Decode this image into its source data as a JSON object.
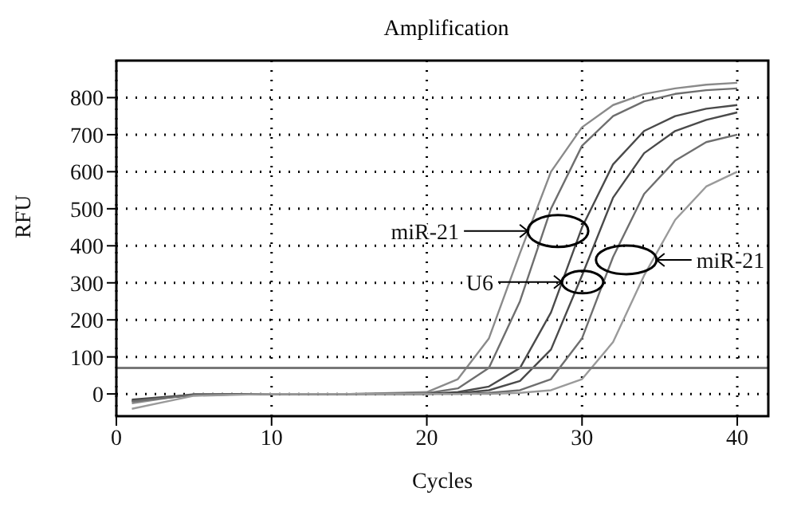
{
  "chart_data": {
    "type": "line",
    "title": "Amplification",
    "xlabel": "Cycles",
    "ylabel": "RFU",
    "xlim": [
      0,
      42
    ],
    "xticks": [
      0,
      10,
      20,
      30,
      40
    ],
    "ylim": [
      -60,
      900
    ],
    "yticks": [
      0,
      100,
      200,
      300,
      400,
      500,
      600,
      700,
      800
    ],
    "grid": true,
    "marker": "none",
    "line_style": "solid",
    "series": [
      {
        "color": "#8a8a8a",
        "x": [
          1,
          5,
          10,
          15,
          20,
          22,
          24,
          26,
          28,
          30,
          32,
          34,
          36,
          38,
          40
        ],
        "values": [
          -25,
          0,
          0,
          0,
          5,
          40,
          150,
          380,
          600,
          720,
          780,
          810,
          825,
          835,
          840
        ]
      },
      {
        "color": "#6e6e6e",
        "x": [
          1,
          5,
          10,
          15,
          20,
          22,
          24,
          26,
          28,
          30,
          32,
          34,
          36,
          38,
          40
        ],
        "values": [
          -20,
          -2,
          0,
          0,
          2,
          15,
          70,
          250,
          500,
          670,
          750,
          790,
          810,
          820,
          825
        ]
      },
      {
        "color": "#4a4a4a",
        "x": [
          1,
          5,
          10,
          15,
          20,
          22,
          24,
          26,
          28,
          30,
          32,
          34,
          36,
          38,
          40
        ],
        "values": [
          -18,
          -3,
          0,
          0,
          0,
          5,
          20,
          70,
          220,
          450,
          620,
          710,
          750,
          770,
          780
        ]
      },
      {
        "color": "#4a4a4a",
        "x": [
          1,
          5,
          10,
          15,
          20,
          22,
          24,
          26,
          28,
          30,
          32,
          34,
          36,
          38,
          40
        ],
        "values": [
          -15,
          -2,
          0,
          0,
          0,
          2,
          10,
          35,
          120,
          320,
          530,
          650,
          710,
          740,
          760
        ]
      },
      {
        "color": "#6e6e6e",
        "x": [
          1,
          5,
          10,
          15,
          20,
          22,
          24,
          26,
          28,
          30,
          32,
          34,
          36,
          38,
          40
        ],
        "values": [
          -20,
          -3,
          0,
          0,
          0,
          0,
          3,
          10,
          40,
          150,
          370,
          540,
          630,
          680,
          700
        ]
      },
      {
        "color": "#9a9a9a",
        "x": [
          1,
          5,
          10,
          15,
          20,
          22,
          24,
          26,
          28,
          30,
          32,
          34,
          36,
          38,
          40
        ],
        "values": [
          -40,
          -5,
          0,
          0,
          0,
          0,
          0,
          3,
          10,
          40,
          140,
          320,
          470,
          560,
          600
        ]
      }
    ],
    "ref_lines": [
      {
        "axis": "y",
        "value": 70,
        "color": "#777777"
      }
    ],
    "annotations": [
      {
        "text": "miR-21",
        "x": 26.5,
        "y": 440
      },
      {
        "text": "U6",
        "x": 28.7,
        "y": 302
      },
      {
        "text": "miR-21",
        "x": 34.8,
        "y": 362
      }
    ]
  }
}
